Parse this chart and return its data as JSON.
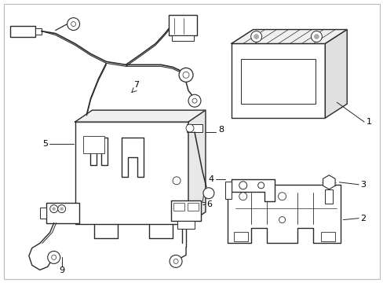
{
  "background_color": "#ffffff",
  "line_color": "#2a2a2a",
  "callout_color": "#000000",
  "fig_width": 4.89,
  "fig_height": 3.6,
  "dpi": 100
}
